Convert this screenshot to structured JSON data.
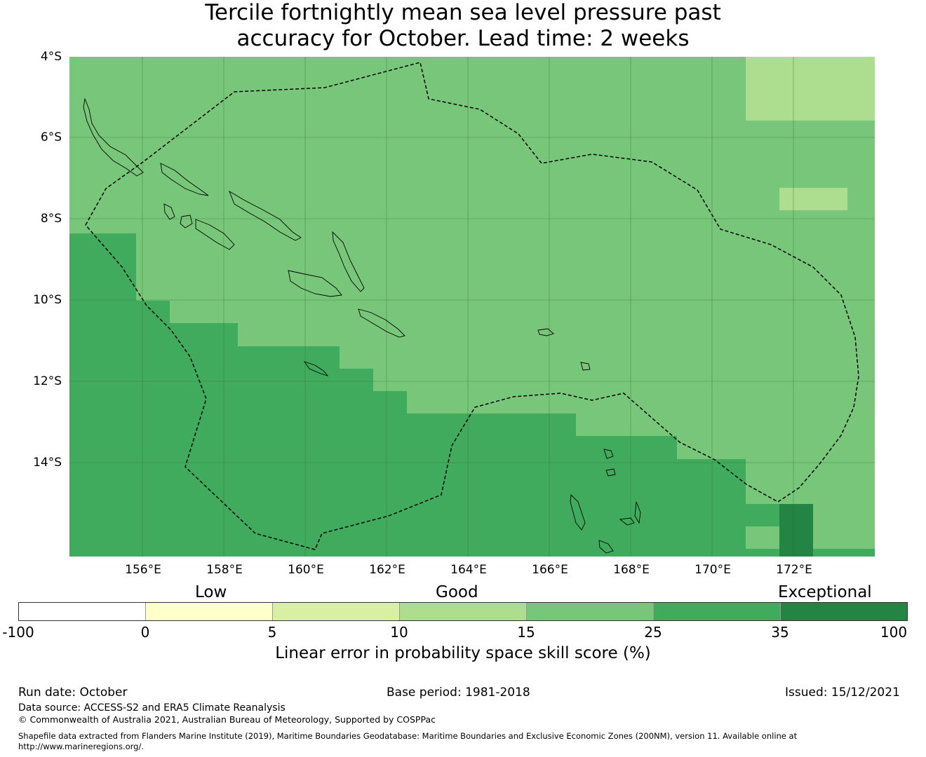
{
  "title": {
    "line1": "Tercile fortnightly mean sea level pressure past",
    "line2": "accuracy for October. Lead time: 2 weeks"
  },
  "map": {
    "lat_ticks": [
      "4°S",
      "6°S",
      "8°S",
      "10°S",
      "12°S",
      "14°S"
    ],
    "lon_ticks": [
      "156°E",
      "158°E",
      "160°E",
      "162°E",
      "164°E",
      "166°E",
      "168°E",
      "170°E",
      "172°E"
    ],
    "extent": {
      "lon_min": 154.2,
      "lon_max": 174.0,
      "lat_min": -16.3,
      "lat_max": -4.0
    },
    "boundary_style": "dashed",
    "colors": {
      "good": "#78c679",
      "very_good": "#41ab5d",
      "light": "#addd8e",
      "exceptional": "#238443"
    }
  },
  "legend": {
    "categories": {
      "low": "Low",
      "good": "Good",
      "exceptional": "Exceptional"
    },
    "ticks": [
      "-100",
      "0",
      "5",
      "10",
      "15",
      "25",
      "35",
      "100"
    ],
    "colors": [
      "#ffffff",
      "#ffffcc",
      "#d9f0a3",
      "#addd8e",
      "#78c679",
      "#41ab5d",
      "#238443"
    ],
    "label": "Linear error in probability space skill score (%)"
  },
  "footer": {
    "run_date": "Run date: October",
    "base_period": "Base period: 1981-2018",
    "issued": "Issued: 15/12/2021",
    "data_source": "Data source: ACCESS-S2 and ERA5 Climate Reanalysis",
    "copyright": "© Commonwealth of Australia 2021, Australian Bureau of Meteorology, Supported by COSPPac",
    "shapefile_line1": "Shapefile data extracted from Flanders Marine Institute (2019), Maritime Boundaries Geodatabase: Maritime Boundaries and Exclusive Economic Zones (200NM), version 11. Available online at",
    "shapefile_line2": "http://www.marineregions.org/."
  }
}
